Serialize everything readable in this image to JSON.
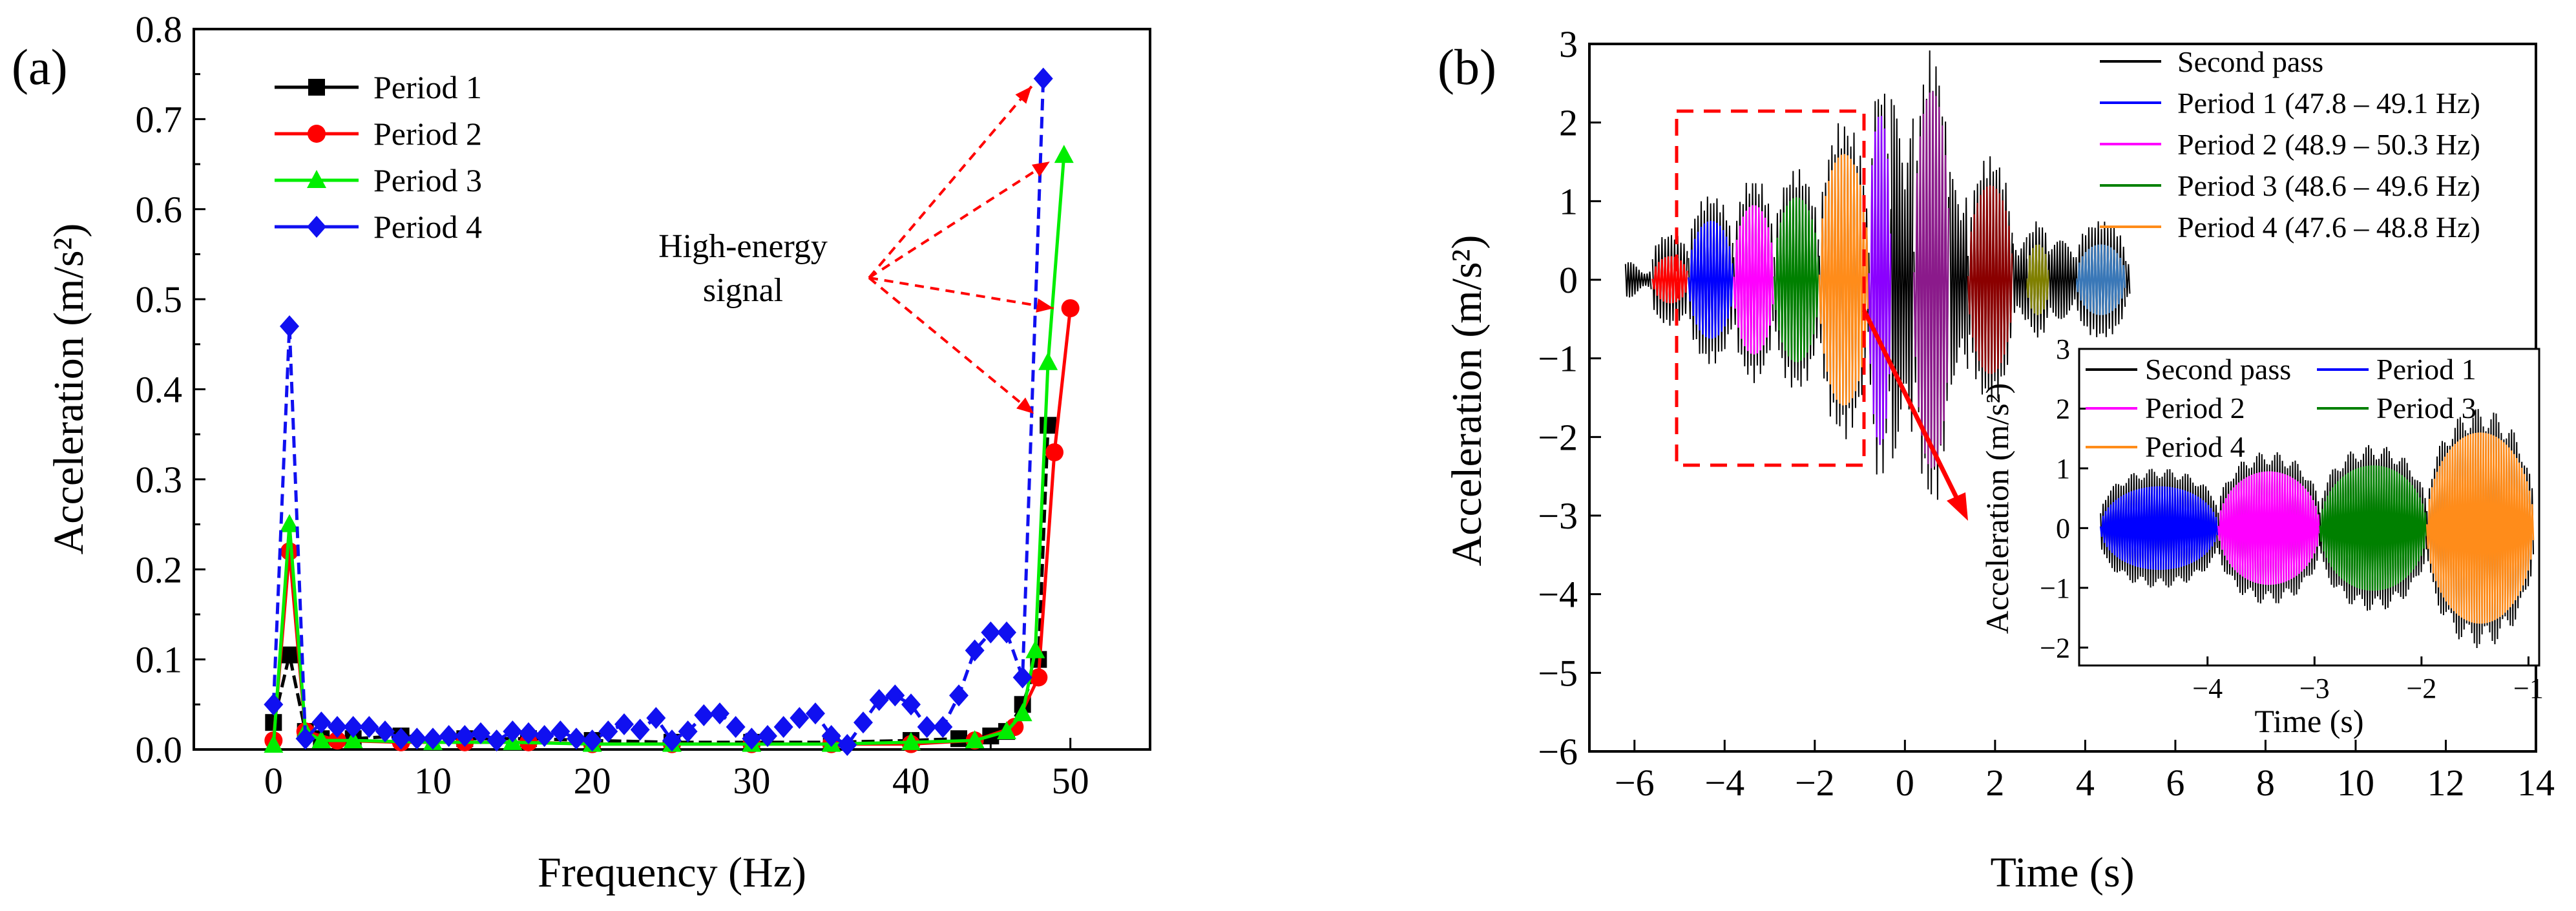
{
  "chart_data": [
    {
      "panel_label": "(a)",
      "type": "line",
      "xlabel": "Frequency (Hz)",
      "ylabel": "Acceleration (m/s²)",
      "xlim": [
        -5,
        55
      ],
      "ylim": [
        0.0,
        0.8
      ],
      "x_ticks": [
        0,
        10,
        20,
        30,
        40,
        50
      ],
      "y_ticks": [
        "0.0",
        "0.1",
        "0.2",
        "0.3",
        "0.4",
        "0.5",
        "0.6",
        "0.7",
        "0.8"
      ],
      "legend_position": "top-left",
      "annotation": [
        "High-energy",
        "signal"
      ],
      "series": [
        {
          "name": "Period 1",
          "color": "#000000",
          "marker": "square",
          "points": [
            [
              0,
              0.03
            ],
            [
              1,
              0.105
            ],
            [
              2,
              0.02
            ],
            [
              3,
              0.012
            ],
            [
              5,
              0.012
            ],
            [
              8,
              0.015
            ],
            [
              12,
              0.012
            ],
            [
              16,
              0.012
            ],
            [
              20,
              0.01
            ],
            [
              25,
              0.008
            ],
            [
              30,
              0.008
            ],
            [
              35,
              0.008
            ],
            [
              40,
              0.01
            ],
            [
              43,
              0.012
            ],
            [
              45,
              0.015
            ],
            [
              46,
              0.02
            ],
            [
              47,
              0.05
            ],
            [
              48,
              0.1
            ],
            [
              48.6,
              0.36
            ]
          ]
        },
        {
          "name": "Period 2",
          "color": "#ff0000",
          "marker": "circle",
          "points": [
            [
              0,
              0.01
            ],
            [
              1,
              0.22
            ],
            [
              2,
              0.02
            ],
            [
              4,
              0.01
            ],
            [
              8,
              0.008
            ],
            [
              12,
              0.008
            ],
            [
              16,
              0.008
            ],
            [
              20,
              0.006
            ],
            [
              25,
              0.006
            ],
            [
              30,
              0.006
            ],
            [
              35,
              0.006
            ],
            [
              40,
              0.006
            ],
            [
              44,
              0.01
            ],
            [
              46.5,
              0.025
            ],
            [
              48,
              0.08
            ],
            [
              49,
              0.33
            ],
            [
              50,
              0.49
            ]
          ]
        },
        {
          "name": "Period 3",
          "color": "#00ee00",
          "marker": "triangle",
          "points": [
            [
              0,
              0.005
            ],
            [
              1,
              0.25
            ],
            [
              2,
              0.02
            ],
            [
              3,
              0.01
            ],
            [
              5,
              0.01
            ],
            [
              10,
              0.008
            ],
            [
              15,
              0.008
            ],
            [
              20,
              0.006
            ],
            [
              25,
              0.006
            ],
            [
              30,
              0.006
            ],
            [
              35,
              0.006
            ],
            [
              40,
              0.008
            ],
            [
              44,
              0.01
            ],
            [
              46,
              0.02
            ],
            [
              47,
              0.04
            ],
            [
              47.8,
              0.11
            ],
            [
              48.6,
              0.43
            ],
            [
              49.6,
              0.66
            ]
          ]
        },
        {
          "name": "Period 4",
          "color": "#1010f0",
          "marker": "diamond",
          "points": [
            [
              0,
              0.05
            ],
            [
              1,
              0.47
            ],
            [
              2,
              0.012
            ],
            [
              3,
              0.03
            ],
            [
              4,
              0.025
            ],
            [
              5,
              0.025
            ],
            [
              6,
              0.025
            ],
            [
              7,
              0.02
            ],
            [
              8,
              0.012
            ],
            [
              9,
              0.012
            ],
            [
              10,
              0.012
            ],
            [
              11,
              0.015
            ],
            [
              12,
              0.015
            ],
            [
              13,
              0.018
            ],
            [
              14,
              0.01
            ],
            [
              15,
              0.02
            ],
            [
              16,
              0.018
            ],
            [
              17,
              0.015
            ],
            [
              18,
              0.02
            ],
            [
              19,
              0.012
            ],
            [
              20,
              0.01
            ],
            [
              21,
              0.02
            ],
            [
              22,
              0.028
            ],
            [
              23,
              0.022
            ],
            [
              24,
              0.035
            ],
            [
              25,
              0.01
            ],
            [
              26,
              0.02
            ],
            [
              27,
              0.038
            ],
            [
              28,
              0.04
            ],
            [
              29,
              0.025
            ],
            [
              30,
              0.012
            ],
            [
              31,
              0.015
            ],
            [
              32,
              0.025
            ],
            [
              33,
              0.035
            ],
            [
              34,
              0.04
            ],
            [
              35,
              0.015
            ],
            [
              36,
              0.005
            ],
            [
              37,
              0.03
            ],
            [
              38,
              0.055
            ],
            [
              39,
              0.06
            ],
            [
              40,
              0.05
            ],
            [
              41,
              0.025
            ],
            [
              42,
              0.025
            ],
            [
              43,
              0.06
            ],
            [
              44,
              0.11
            ],
            [
              45,
              0.13
            ],
            [
              46,
              0.13
            ],
            [
              47,
              0.08
            ],
            [
              48.3,
              0.745
            ]
          ]
        }
      ]
    },
    {
      "panel_label": "(b)",
      "type": "line",
      "xlabel": "Time (s)",
      "ylabel": "Acceleration (m/s²)",
      "xlim": [
        -7,
        14
      ],
      "ylim": [
        -6,
        3
      ],
      "x_ticks": [
        -6,
        -4,
        -2,
        0,
        2,
        4,
        6,
        8,
        10,
        12,
        14
      ],
      "y_ticks": [
        -6,
        -5,
        -4,
        -3,
        -2,
        -1,
        0,
        1,
        2,
        3
      ],
      "legend_position": "top-right",
      "series": [
        {
          "name": "Second pass",
          "color": "#000000"
        },
        {
          "name": "Period 1 (47.8 – 49.1 Hz)",
          "color": "#0000ff"
        },
        {
          "name": "Period 2 (48.9 – 50.3 Hz)",
          "color": "#ff00ff"
        },
        {
          "name": "Period 3 (48.6 – 49.6 Hz)",
          "color": "#008000"
        },
        {
          "name": "Period 4 (47.6 – 48.8 Hz)",
          "color": "#ff8c1a"
        }
      ],
      "wave_segments": [
        {
          "color": "#ff0000",
          "t": [
            -5.6,
            -4.8
          ],
          "amp": 0.3
        },
        {
          "color": "#0000ff",
          "t": [
            -4.8,
            -3.8
          ],
          "amp": 0.75
        },
        {
          "color": "#ff00ff",
          "t": [
            -3.8,
            -2.9
          ],
          "amp": 0.95
        },
        {
          "color": "#008000",
          "t": [
            -2.9,
            -1.9
          ],
          "amp": 1.05
        },
        {
          "color": "#ff8c1a",
          "t": [
            -1.9,
            -0.8
          ],
          "amp": 1.6
        },
        {
          "color": "#8b00ff",
          "t": [
            -0.8,
            -0.3
          ],
          "amp": 2.1
        },
        {
          "color": "#8b1a8b",
          "t": [
            0.2,
            1.0
          ],
          "amp": 2.4
        },
        {
          "color": "#8b0000",
          "t": [
            1.4,
            2.4
          ],
          "amp": 1.2
        },
        {
          "color": "#808000",
          "t": [
            2.7,
            3.2
          ],
          "amp": 0.45
        },
        {
          "color": "#3a78b8",
          "t": [
            3.8,
            4.9
          ],
          "amp": 0.45
        }
      ],
      "inset": {
        "xlabel": "Time (s)",
        "ylabel": "Acceleration (m/s²)",
        "xlim": [
          -5.2,
          -0.9
        ],
        "ylim": [
          -2.3,
          3
        ],
        "x_ticks": [
          -4,
          -3,
          -2,
          -1
        ],
        "y_ticks": [
          -2,
          -1,
          0,
          1,
          2,
          3
        ],
        "legend": [
          {
            "name": "Second pass",
            "color": "#000000"
          },
          {
            "name": "Period 1",
            "color": "#0000ff"
          },
          {
            "name": "Period 2",
            "color": "#ff00ff"
          },
          {
            "name": "Period 3",
            "color": "#008000"
          },
          {
            "name": "Period 4",
            "color": "#ff8c1a"
          }
        ],
        "segments": [
          {
            "color": "#0000ff",
            "t": [
              -5.0,
              -3.9
            ],
            "amp": 0.7
          },
          {
            "color": "#ff00ff",
            "t": [
              -3.9,
              -2.95
            ],
            "amp": 0.95
          },
          {
            "color": "#008000",
            "t": [
              -2.95,
              -1.95
            ],
            "amp": 1.05
          },
          {
            "color": "#ff8c1a",
            "t": [
              -1.95,
              -0.95
            ],
            "amp": 1.6
          }
        ]
      }
    }
  ]
}
